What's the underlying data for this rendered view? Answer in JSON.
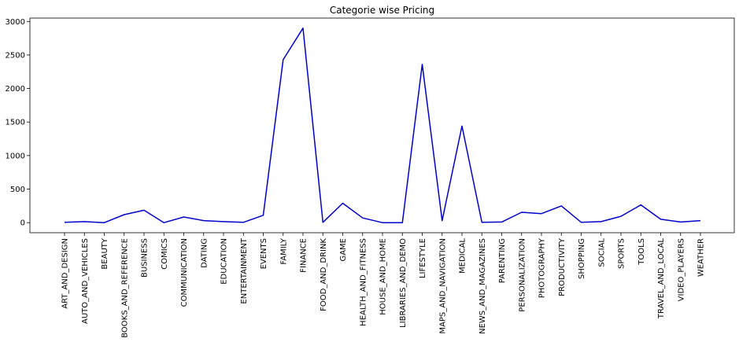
{
  "chart_data": {
    "type": "line",
    "title": "Categorie wise Pricing",
    "xlabel": "",
    "ylabel": "",
    "ylim": [
      -150,
      3050
    ],
    "yticks": [
      0,
      500,
      1000,
      1500,
      2000,
      2500,
      3000
    ],
    "grid": false,
    "line_color": "#0000cc",
    "categories": [
      "ART_AND_DESIGN",
      "AUTO_AND_VEHICLES",
      "BEAUTY",
      "BOOKS_AND_REFERENCE",
      "BUSINESS",
      "COMICS",
      "COMMUNICATION",
      "DATING",
      "EDUCATION",
      "ENTERTAINMENT",
      "EVENTS",
      "FAMILY",
      "FINANCE",
      "FOOD_AND_DRINK",
      "GAME",
      "HEALTH_AND_FITNESS",
      "HOUSE_AND_HOME",
      "LIBRARIES_AND_DEMO",
      "LIFESTYLE",
      "MAPS_AND_NAVIGATION",
      "MEDICAL",
      "NEWS_AND_MAGAZINES",
      "PARENTING",
      "PERSONALIZATION",
      "PHOTOGRAPHY",
      "PRODUCTIVITY",
      "SHOPPING",
      "SOCIAL",
      "SPORTS",
      "TOOLS",
      "TRAVEL_AND_LOCAL",
      "VIDEO_PLAYERS",
      "WEATHER"
    ],
    "values": [
      5,
      15,
      0,
      120,
      185,
      0,
      85,
      30,
      15,
      5,
      110,
      2430,
      2900,
      5,
      290,
      70,
      0,
      0,
      2360,
      30,
      1440,
      5,
      10,
      155,
      135,
      250,
      5,
      15,
      95,
      265,
      50,
      10,
      30
    ]
  }
}
